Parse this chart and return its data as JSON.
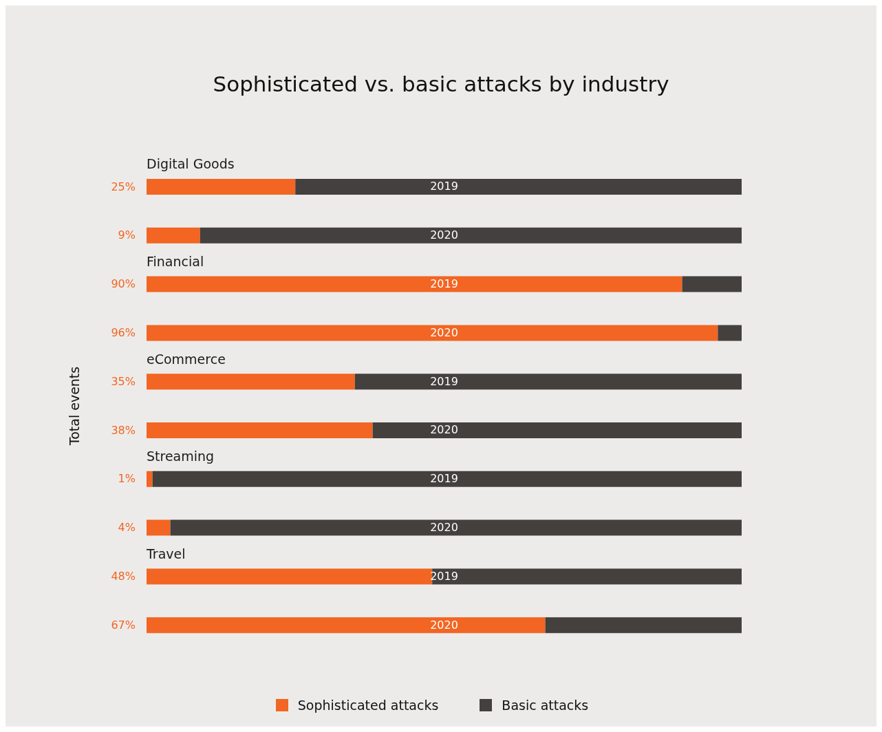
{
  "chart_data": {
    "type": "bar",
    "orientation": "horizontal",
    "stacked": true,
    "title": "Sophisticated vs. basic attacks by industry",
    "ylabel": "Total events",
    "categories": [
      "2019",
      "2020",
      "2019",
      "2020",
      "2019",
      "2020",
      "2019",
      "2020",
      "2019",
      "2020"
    ],
    "annotations": [
      "Digital Goods",
      "Financial",
      "eCommerce",
      "Streaming",
      "Travel"
    ],
    "series": [
      {
        "name": "Sophisticated attacks",
        "color": "#f26522",
        "values": [
          25,
          9,
          90,
          96,
          35,
          38,
          1,
          4,
          48,
          67
        ],
        "value_labels": [
          "25%",
          "9%",
          "90%",
          "96%",
          "35%",
          "38%",
          "1%",
          "4%",
          "48%",
          "67%"
        ]
      },
      {
        "name": "Basic attacks",
        "color": "#43403e",
        "values": [
          75,
          91,
          10,
          4,
          65,
          62,
          99,
          96,
          52,
          33
        ]
      }
    ],
    "legend": "bottom"
  }
}
